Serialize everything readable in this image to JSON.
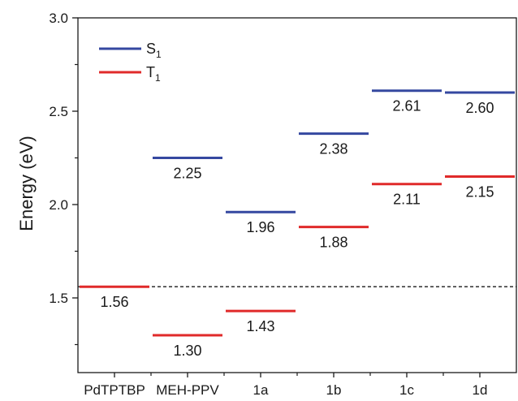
{
  "chart_data": {
    "type": "line",
    "title": "",
    "xlabel": "",
    "ylabel": "Energy (eV)",
    "ylim": [
      1.1,
      3.0
    ],
    "yticks": [
      "1.5",
      "2.0",
      "2.5",
      "3.0"
    ],
    "categories": [
      "PdTPTBP",
      "MEH-PPV",
      "1a",
      "1b",
      "1c",
      "1d"
    ],
    "legend": {
      "placement": "top-left",
      "entries": [
        {
          "main": "S",
          "sub": "1",
          "color": "#3548a0"
        },
        {
          "main": "T",
          "sub": "1",
          "color": "#e02a2a"
        }
      ]
    },
    "series": [
      {
        "key": "S1",
        "color": "#3548a0",
        "values": [
          null,
          2.25,
          1.96,
          2.38,
          2.61,
          2.6
        ],
        "labels": [
          "",
          "2.25",
          "1.96",
          "2.38",
          "2.61",
          "2.60"
        ]
      },
      {
        "key": "T1",
        "color": "#e02a2a",
        "values": [
          1.56,
          1.3,
          1.43,
          1.88,
          2.11,
          2.15
        ],
        "labels": [
          "1.56",
          "1.30",
          "1.43",
          "1.88",
          "2.11",
          "2.15"
        ]
      }
    ],
    "reference_line": {
      "y": 1.56,
      "style": "dashed"
    }
  }
}
